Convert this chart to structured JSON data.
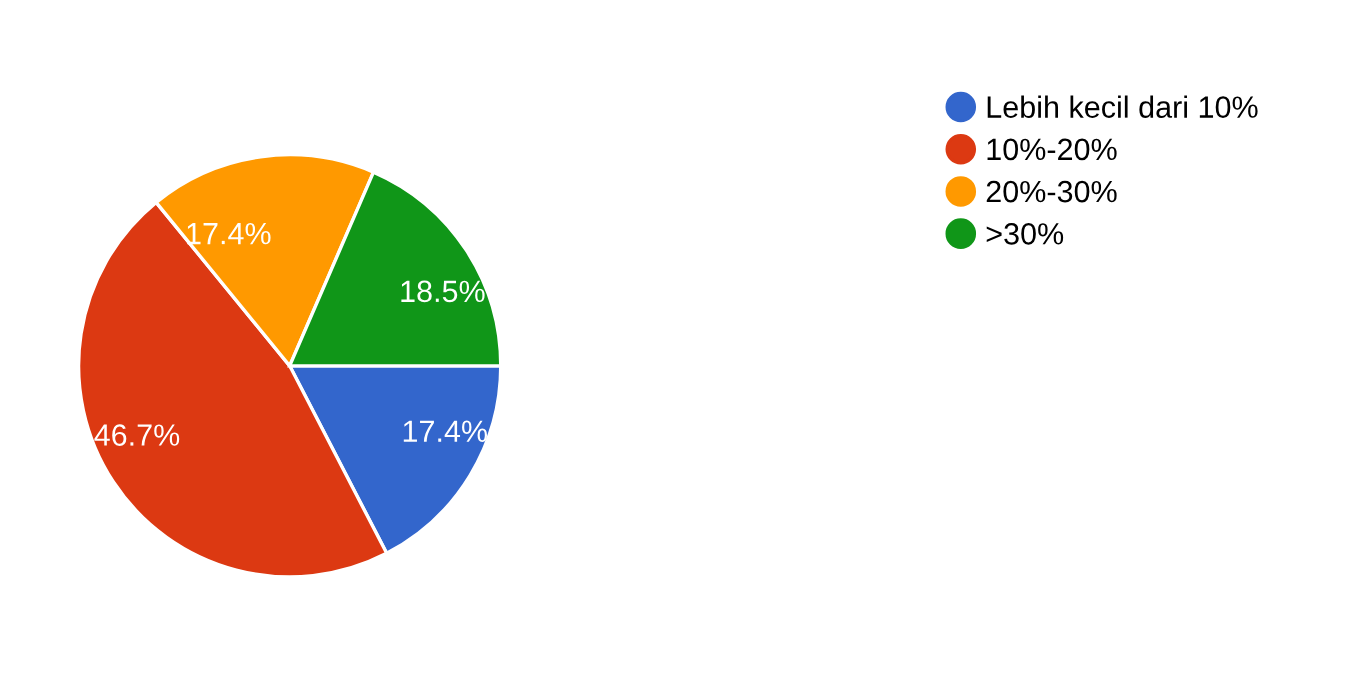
{
  "chart_data": {
    "type": "pie",
    "categories": [
      "Lebih kecil dari 10%",
      "10%-20%",
      "20%-30%",
      ">30%"
    ],
    "values": [
      17.4,
      46.7,
      17.4,
      18.5
    ],
    "value_labels": [
      "17.4%",
      "46.7%",
      "17.4%",
      "18.5%"
    ],
    "colors": [
      "#3366cc",
      "#dc3912",
      "#ff9900",
      "#109618"
    ],
    "legend": "right"
  }
}
